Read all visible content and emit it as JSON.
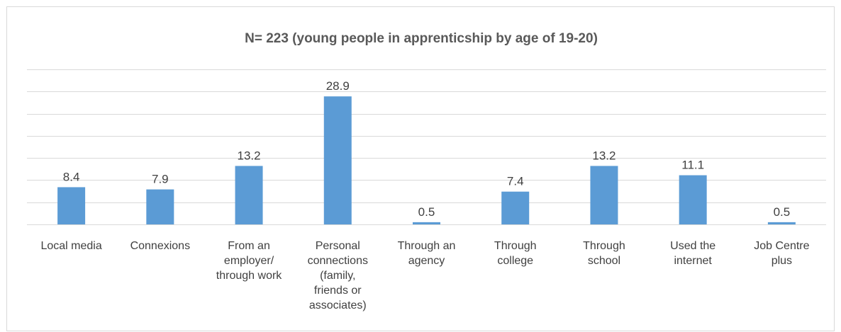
{
  "chart_data": {
    "type": "bar",
    "title": "N= 223 (young people in apprenticship by age of 19-20)",
    "xlabel": "",
    "ylabel": "",
    "categories": [
      [
        "Local media"
      ],
      [
        "Connexions"
      ],
      [
        "From an",
        "employer/",
        "through work"
      ],
      [
        "Personal",
        "connections",
        "(family,",
        "friends or",
        "associates)"
      ],
      [
        "Through an",
        "agency"
      ],
      [
        "Through",
        "college"
      ],
      [
        "Through",
        "school"
      ],
      [
        "Used the",
        "internet"
      ],
      [
        "Job Centre",
        "plus"
      ]
    ],
    "values": [
      8.4,
      7.9,
      13.2,
      28.9,
      0.5,
      7.4,
      13.2,
      11.1,
      0.5
    ],
    "ylim": [
      0,
      35
    ],
    "grid": true,
    "legend": "none",
    "bar_color": "#5b9bd5"
  }
}
